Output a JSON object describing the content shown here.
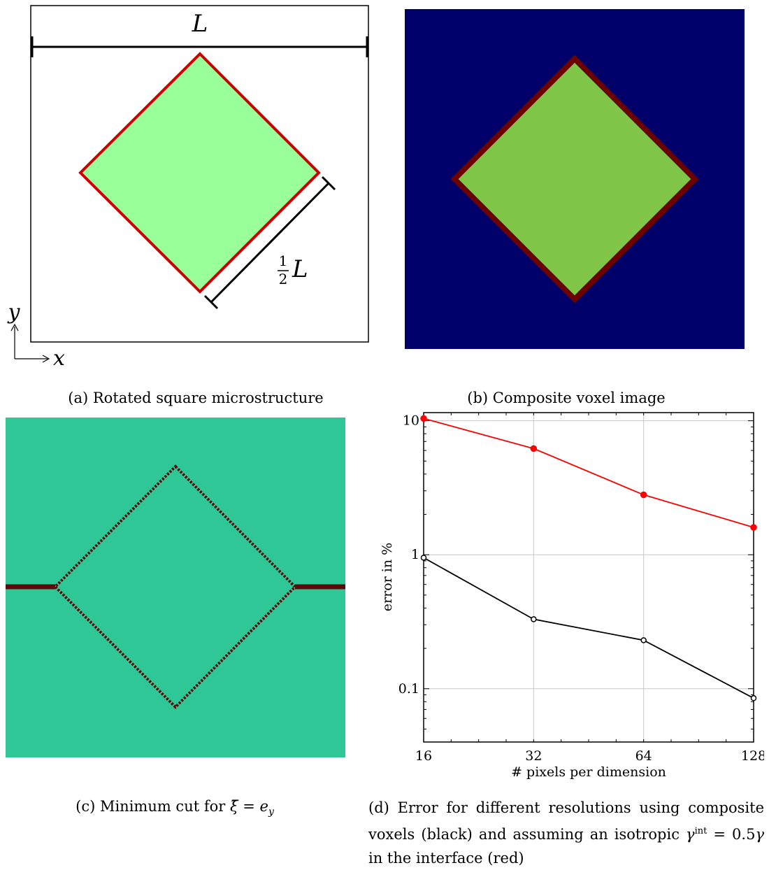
{
  "panel_a": {
    "width_label": "L",
    "half_label_num": "1",
    "half_label_den": "2",
    "half_label_var": "L",
    "axis_y": "y",
    "axis_x": "x",
    "colors": {
      "fill": "#99ff99",
      "outline": "#cc0000"
    }
  },
  "panel_b": {
    "colors": {
      "background": "#00006b",
      "inclusion": "#7fc649",
      "interface": "#6b0000"
    }
  },
  "panel_c": {
    "colors": {
      "background": "#2ec795",
      "cut": "#5a0a0a"
    }
  },
  "captions": {
    "a": "(a) Rotated square microstructure",
    "b": "(b) Composite voxel image",
    "c_prefix": "(c) Minimum cut for ",
    "c_xi": "ξ̄",
    "c_eq": " = ",
    "c_e": "e",
    "c_sub": "y",
    "d_part1": "(d) Error for different resolutions using composite voxels (black) and assuming an isotropic ",
    "d_gamma": "γ",
    "d_sup": "int",
    "d_part2": " = 0.5",
    "d_gamma2": "γ",
    "d_part3": " in the interface (red)"
  },
  "chart_data": {
    "type": "line",
    "xlabel": "# pixels per dimension",
    "ylabel": "error in %",
    "x_scale": "log2",
    "y_scale": "log10",
    "xlim": [
      16,
      128
    ],
    "ylim": [
      0.04,
      11.5
    ],
    "x_ticks": [
      16,
      32,
      64,
      128
    ],
    "x_tick_labels": [
      "16",
      "32",
      "64",
      "128"
    ],
    "y_ticks": [
      0.1,
      1,
      10
    ],
    "y_tick_labels": [
      "0.1",
      "1",
      "10"
    ],
    "grid": true,
    "x": [
      16,
      32,
      64,
      128
    ],
    "series": [
      {
        "color": "#ff0000",
        "marker": "filled-circle",
        "values": [
          10.4,
          6.2,
          2.8,
          1.6
        ]
      },
      {
        "color": "#000000",
        "marker": "open-circle",
        "values": [
          0.95,
          0.33,
          0.23,
          0.085
        ]
      }
    ]
  }
}
